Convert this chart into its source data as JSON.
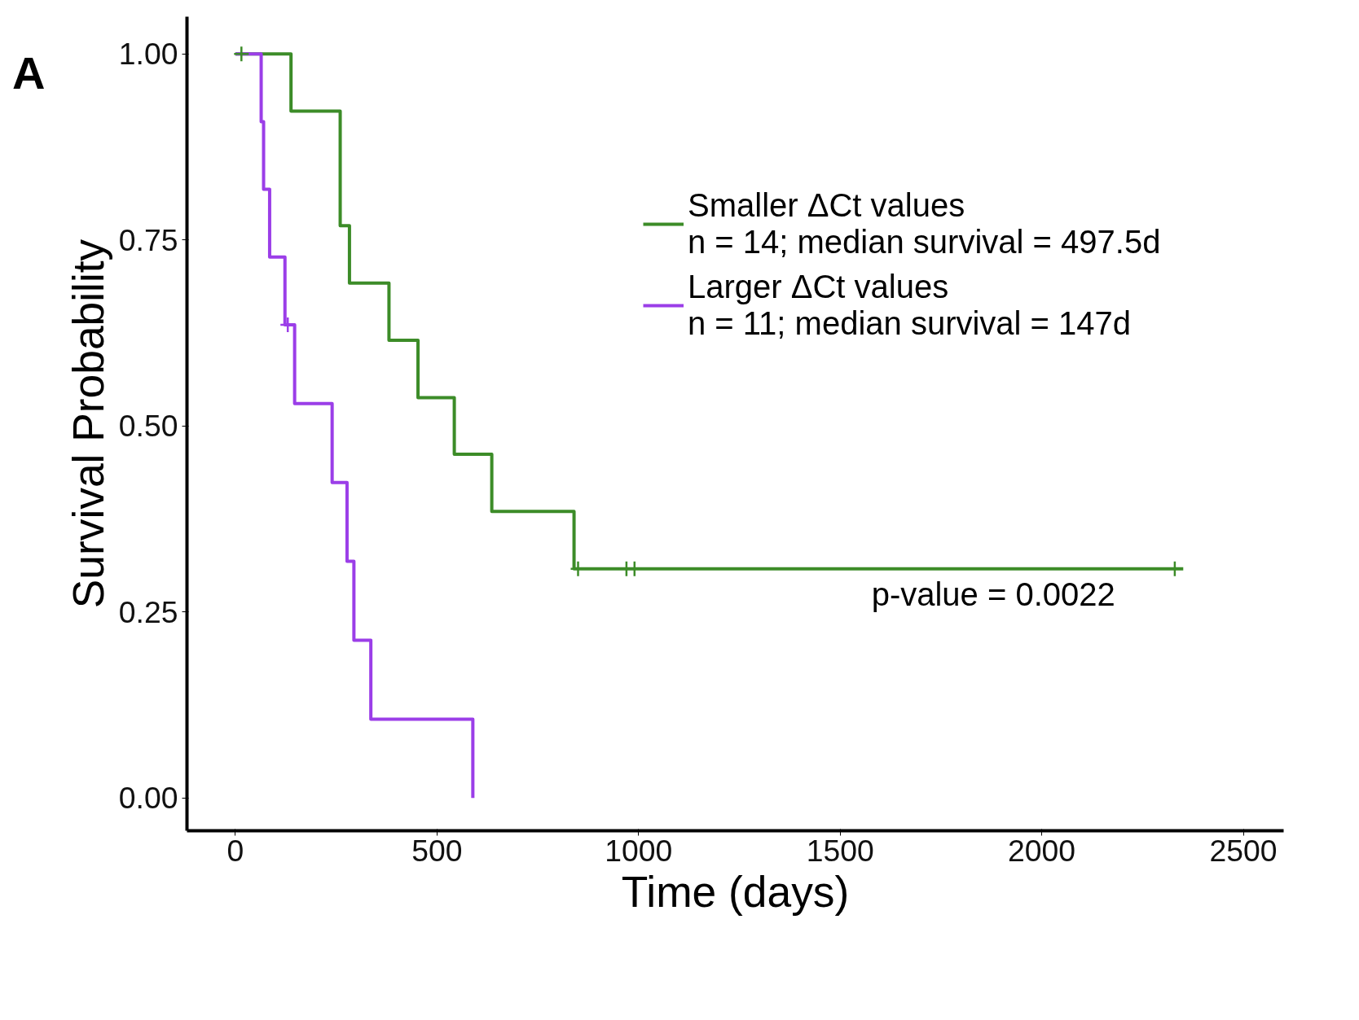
{
  "chart_data": {
    "type": "step",
    "xlabel": "Time (days)",
    "ylabel": "Survival Probability",
    "xlim": [
      -120,
      2600
    ],
    "ylim": [
      -0.044,
      1.05
    ],
    "xticks": [
      0,
      500,
      1000,
      1500,
      2000,
      2500
    ],
    "yticks": [
      {
        "value": 0,
        "label": "0.00"
      },
      {
        "value": 0.25,
        "label": "0.25"
      },
      {
        "value": 0.5,
        "label": "0.50"
      },
      {
        "value": 0.75,
        "label": "0.75"
      },
      {
        "value": 1,
        "label": "1.00"
      }
    ],
    "grid": false,
    "legend": "top right",
    "line_style": "solid",
    "annotations": [
      "A",
      "p-value = 0.0022"
    ],
    "series": [
      {
        "name": "Smaller ΔCt values\nn = 14; median survival = 497.5d",
        "color": "#3c8c28",
        "x": [
          0,
          138,
          260,
          283,
          381,
          453,
          543,
          636,
          840,
          2351
        ],
        "values": [
          1.0,
          0.923,
          0.769,
          0.692,
          0.615,
          0.538,
          0.462,
          0.385,
          0.308,
          0.308
        ]
      },
      {
        "name": "Larger ΔCt values\nn = 11; median survival = 147d",
        "color": "#9b3ee8",
        "x": [
          0,
          64,
          70,
          85,
          123,
          147,
          240,
          277,
          294,
          336,
          589
        ],
        "values": [
          1.0,
          0.909,
          0.818,
          0.727,
          0.636,
          0.53,
          0.424,
          0.318,
          0.212,
          0.106,
          0.0
        ]
      },
      {
        "type": "scatter",
        "marker": "cross",
        "color": "#3c8c28",
        "x": [
          15,
          850,
          970,
          990,
          2330
        ],
        "values": [
          1.0,
          0.308,
          0.308,
          0.308,
          0.308
        ]
      },
      {
        "type": "scatter",
        "marker": "cross",
        "color": "#9b3ee8",
        "x": [
          130
        ],
        "values": [
          0.636
        ]
      }
    ]
  }
}
